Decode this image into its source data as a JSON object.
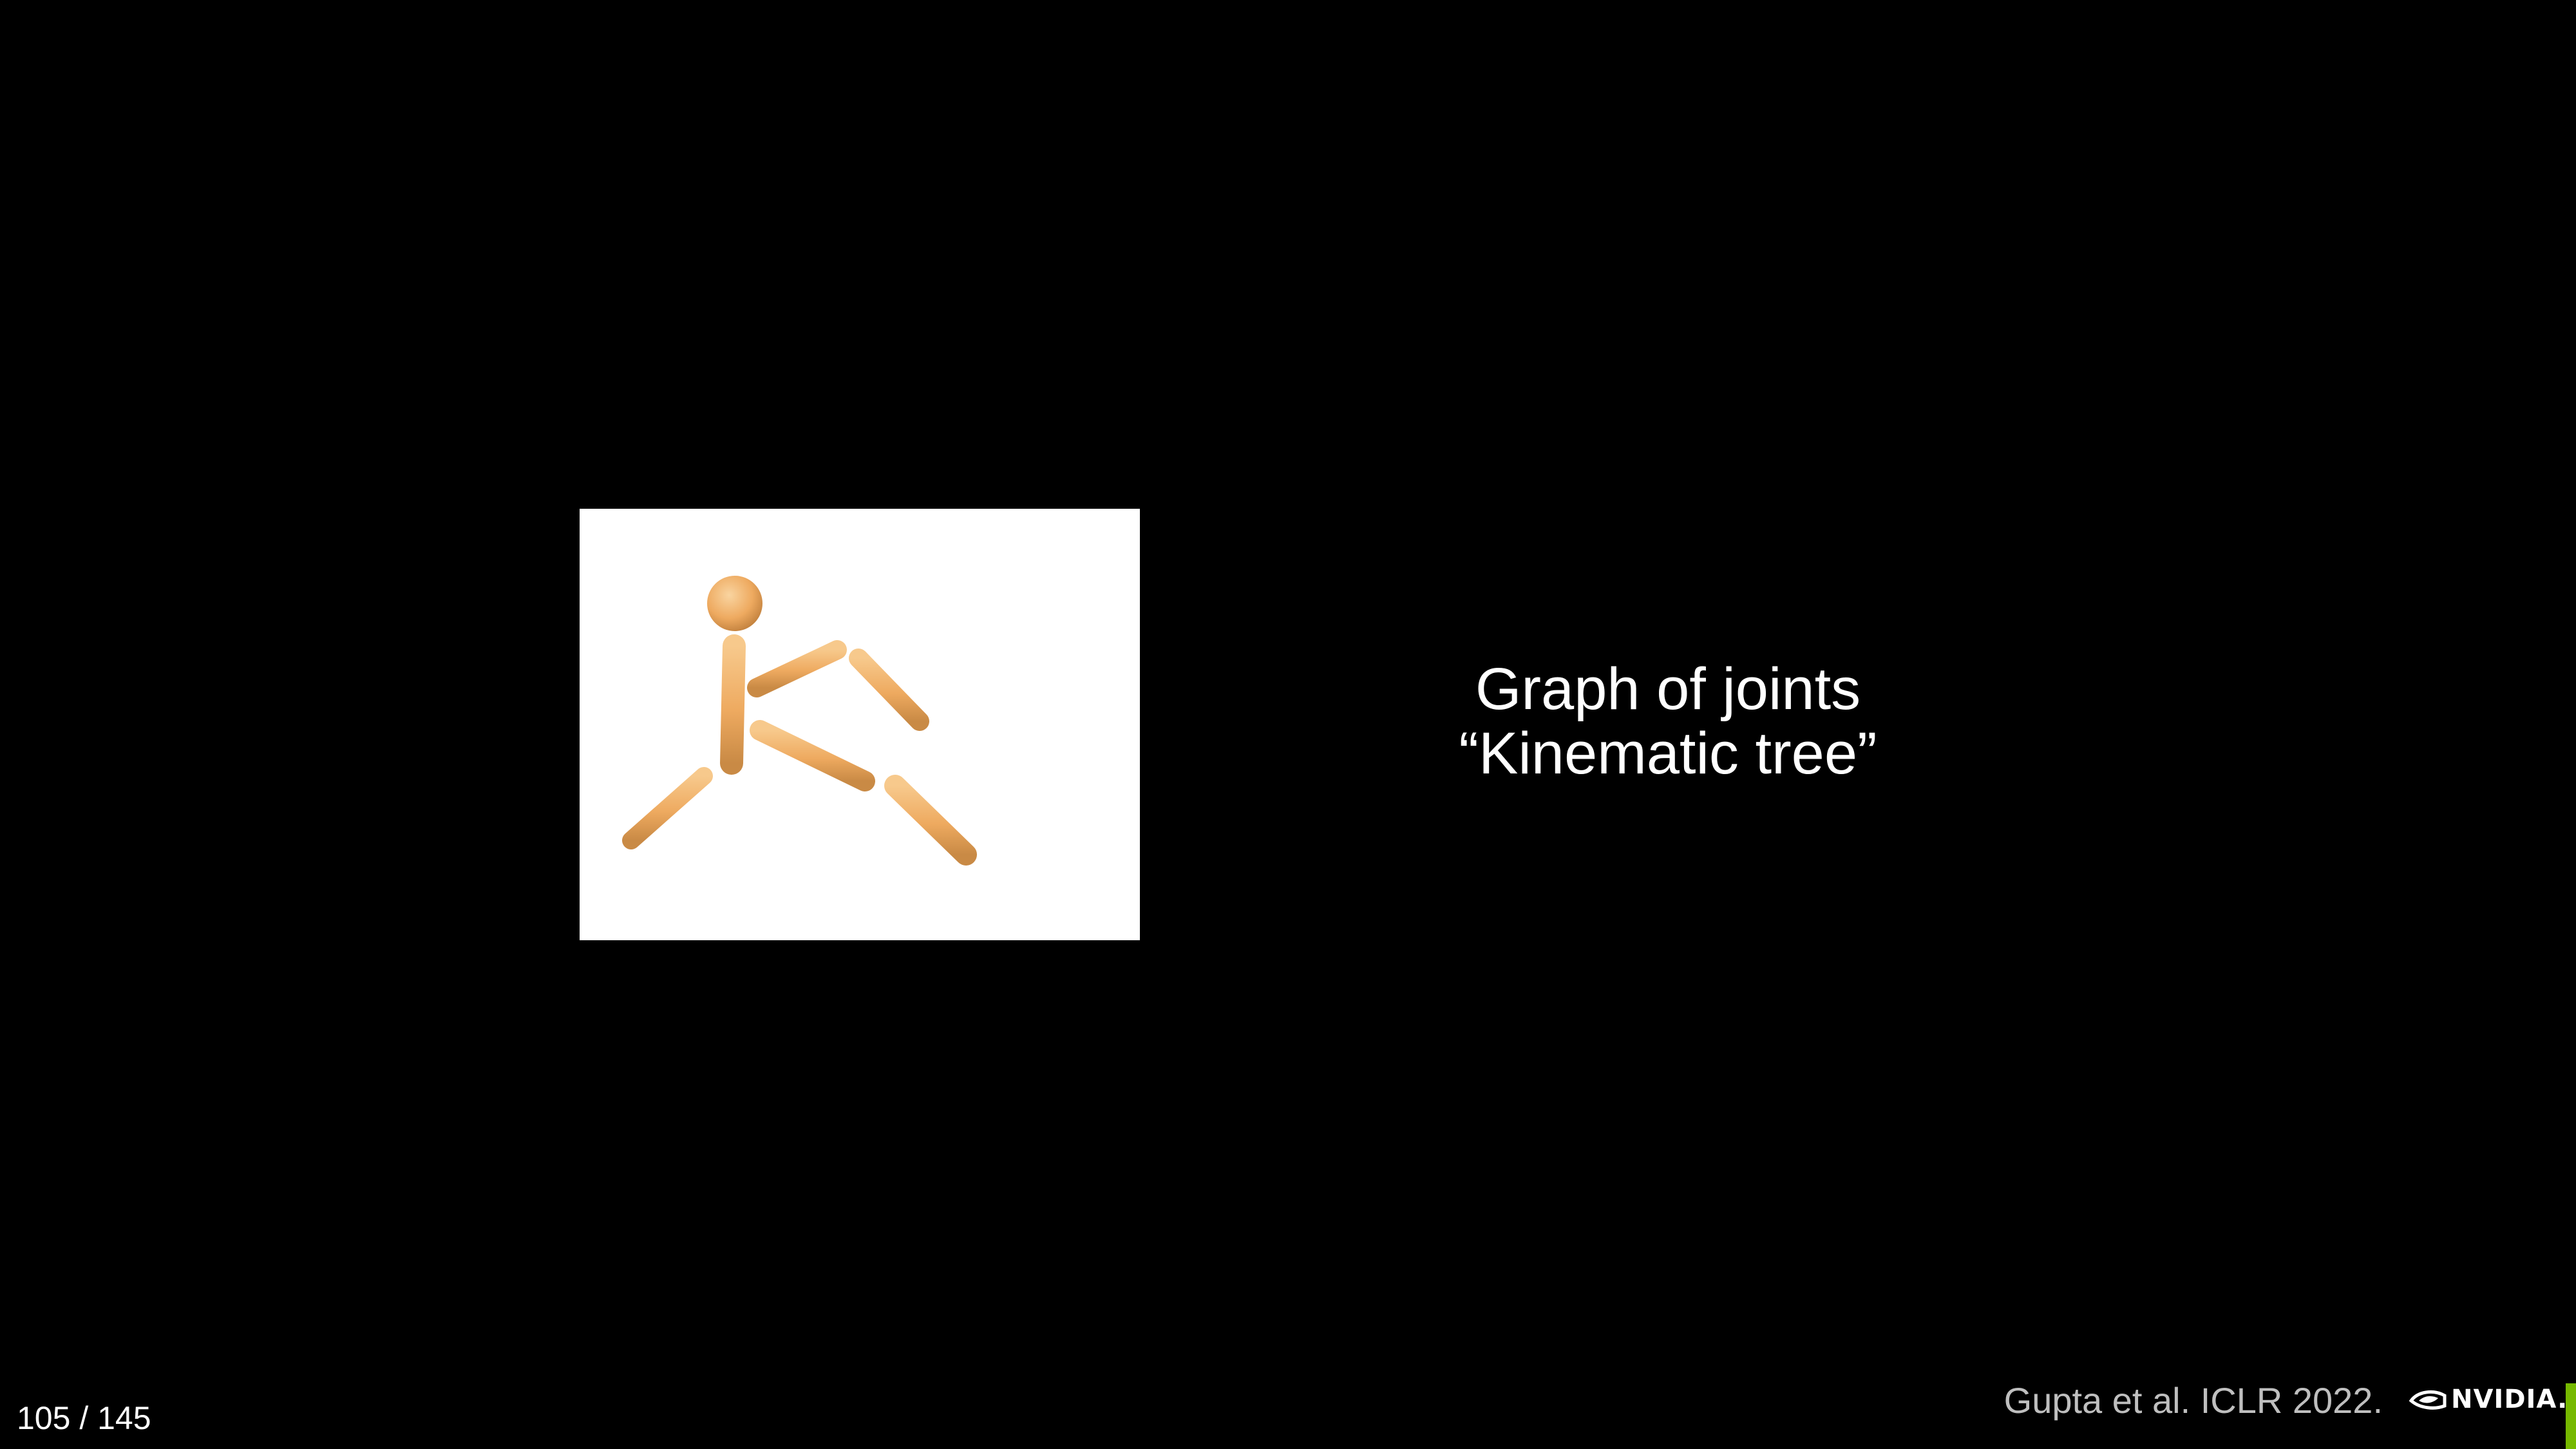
{
  "slide": {
    "caption": {
      "line1": "Graph of joints",
      "line2": "“Kinematic tree”"
    },
    "citation": "Gupta et al. ICLR 2022.",
    "logo": {
      "icon": "nvidia-eye-icon",
      "text": "NVIDIA."
    },
    "page_counter": "105 / 145"
  },
  "figure": {
    "description_icon": "kinematic-stick-figure",
    "colors": {
      "limb": "#f2b36b",
      "limb_shadow": "#c98a45",
      "background": "#ffffff"
    }
  },
  "colors": {
    "background": "#000000",
    "text": "#ffffff",
    "citation": "#bfbfbf",
    "accent": "#76b900"
  }
}
